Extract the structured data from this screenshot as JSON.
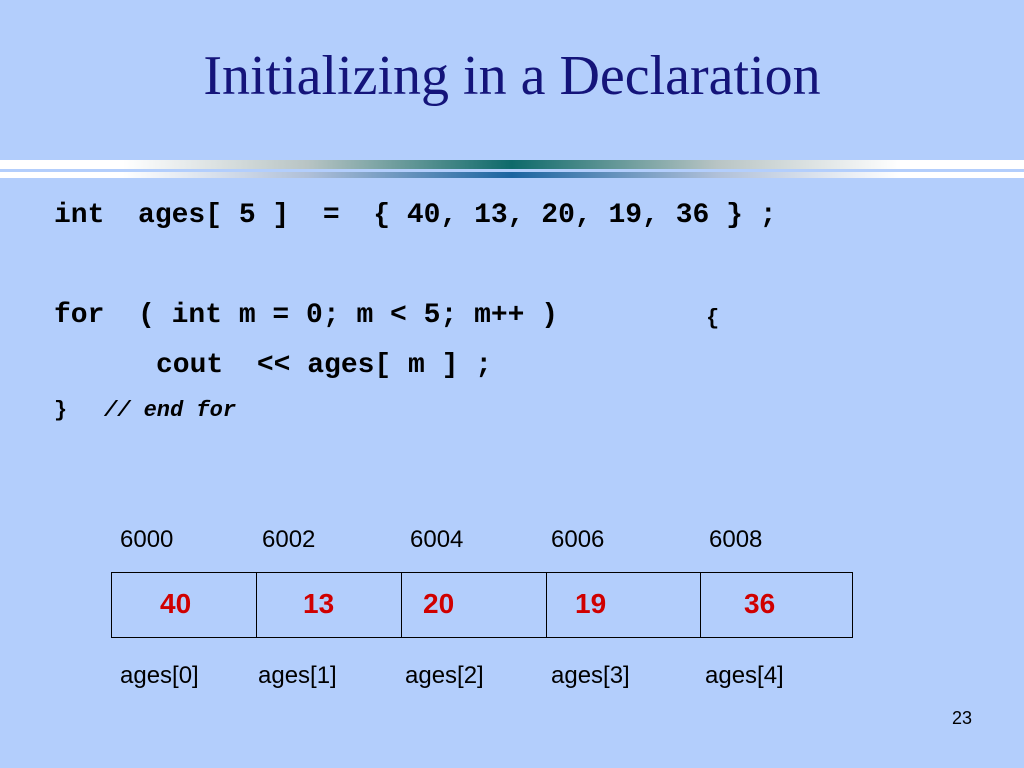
{
  "title": "Initializing in a Declaration",
  "code": {
    "line1": "int  ages[ 5 ]  =  { 40, 13, 20, 19, 36 } ;",
    "line2": "for  ( int m = 0; m < 5; m++ )",
    "line2_brace": "{",
    "line3": "cout  << ages[ m ] ;",
    "line4_brace": "}",
    "line4_comment": "// end for"
  },
  "array": {
    "addresses": [
      "6000",
      "6002",
      "6004",
      "6006",
      "6008"
    ],
    "values": [
      "40",
      "13",
      "20",
      "19",
      "36"
    ],
    "labels": [
      "ages[0]",
      "ages[1]",
      "ages[2]",
      "ages[3]",
      "ages[4]"
    ]
  },
  "colors": {
    "background": "#b3cefc",
    "title": "#14147a",
    "value": "#d00000"
  },
  "page_number": "23"
}
